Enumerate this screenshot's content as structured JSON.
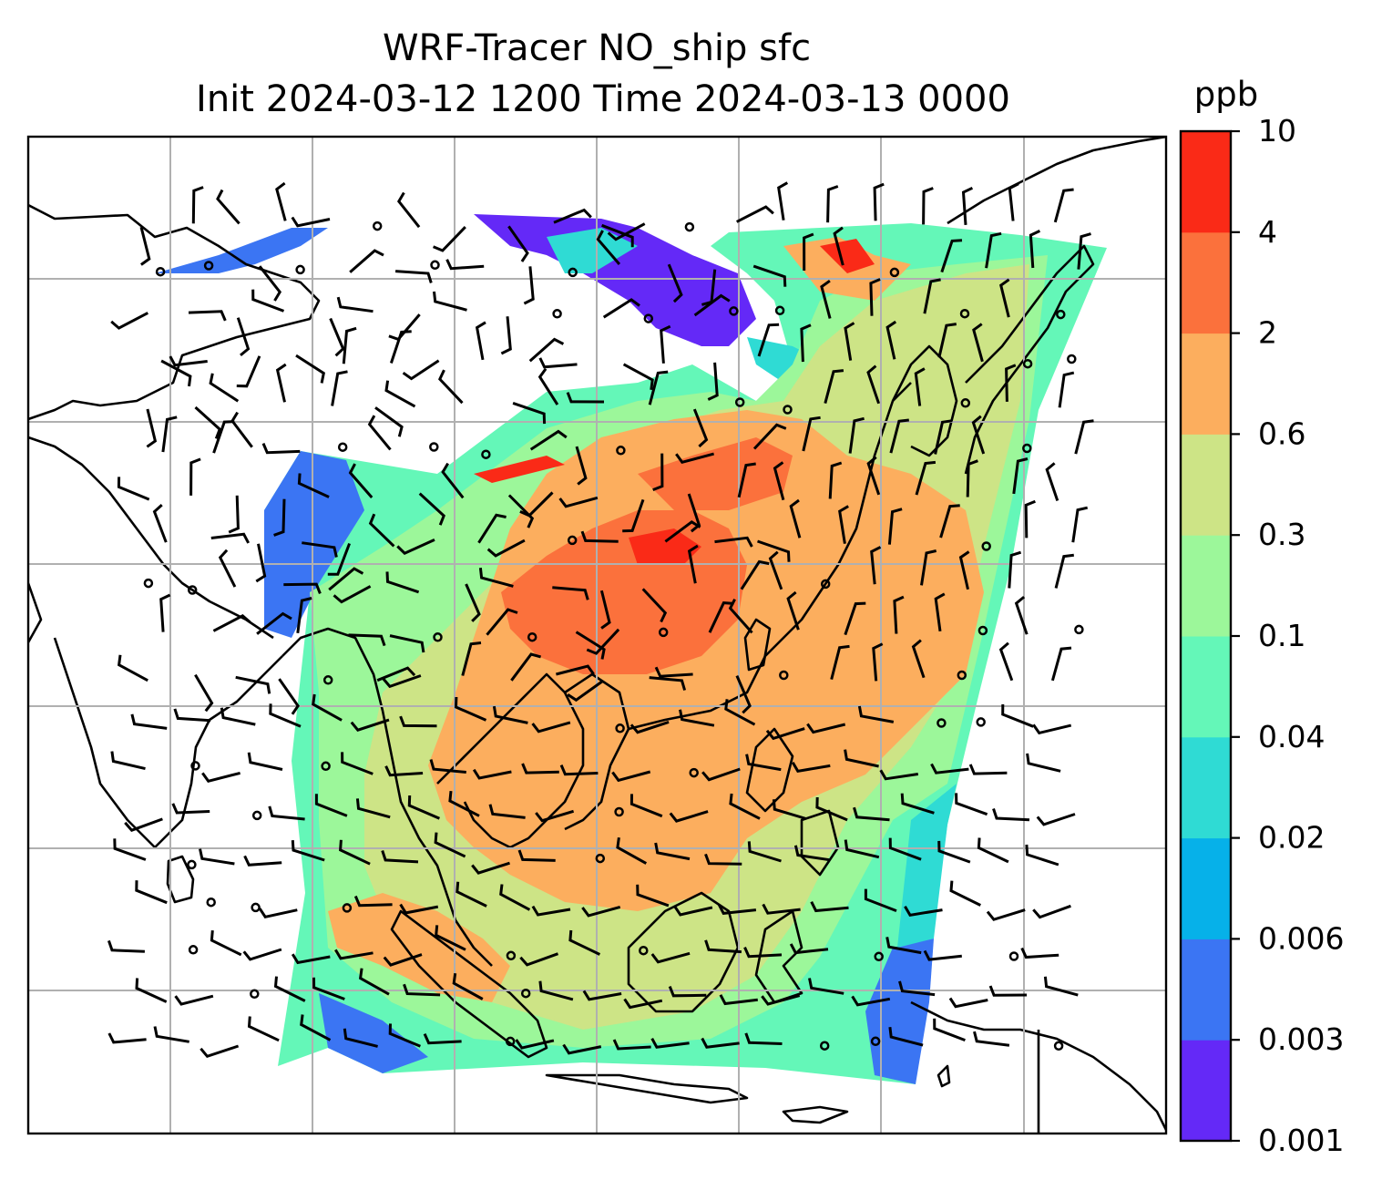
{
  "figure": {
    "title_line1": "WRF-Tracer NO_ship sfc",
    "title_line2": "Init 2024-03-12 1200 Time 2024-03-13 0000"
  },
  "colorbar": {
    "unit": "ppb",
    "tick_labels": [
      "0.001",
      "0.003",
      "0.006",
      "0.02",
      "0.04",
      "0.1",
      "0.3",
      "0.6",
      "2",
      "4",
      "10"
    ],
    "colors": [
      "#6429f7",
      "#3b75f3",
      "#06b1e9",
      "#2fdbd4",
      "#64f7b8",
      "#9cf79a",
      "#cde486",
      "#fcae5e",
      "#fb713c",
      "#fa2a17"
    ]
  },
  "map": {
    "gridlines": true,
    "coastlines": true,
    "wind_barbs": true,
    "field_colors": {
      "vlow": "#6429f7",
      "low": "#3b75f3",
      "cyan": "#2fdbd4",
      "aqua": "#64f7b8",
      "green": "#9cf79a",
      "olive": "#cde486",
      "orange": "#fcae5e",
      "darkorange": "#fb713c",
      "red": "#fa2a17"
    }
  }
}
